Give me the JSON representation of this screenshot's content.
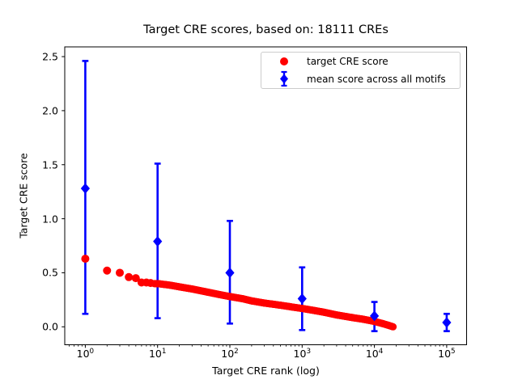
{
  "chart_data": {
    "type": "scatter",
    "title": "Target CRE scores, based on: 18111 CREs",
    "xlabel": "Target CRE rank (log)",
    "ylabel": "Target CRE score",
    "x_scale": "log",
    "xlim": [
      0.52,
      189000
    ],
    "ylim": [
      -0.17,
      2.59
    ],
    "x_tick_base": "10",
    "x_tick_exponents": [
      0,
      1,
      2,
      3,
      4,
      5
    ],
    "y_tick_labels": [
      "0.0",
      "0.5",
      "1.0",
      "1.5",
      "2.0",
      "2.5"
    ],
    "y_tick_values": [
      0.0,
      0.5,
      1.0,
      1.5,
      2.0,
      2.5
    ],
    "grid": false,
    "legend_position": "upper right",
    "n_cres": 18111,
    "series": [
      {
        "name": "target CRE score",
        "marker": "circle",
        "color": "#ff0000",
        "head_points": [
          [
            1,
            0.63
          ],
          [
            2,
            0.52
          ],
          [
            3,
            0.5
          ],
          [
            4,
            0.46
          ],
          [
            5,
            0.45
          ],
          [
            6,
            0.41
          ],
          [
            7,
            0.41
          ],
          [
            8,
            0.405
          ]
        ],
        "band_profile": [
          [
            9,
            0.4
          ],
          [
            10,
            0.4
          ],
          [
            15,
            0.385
          ],
          [
            20,
            0.37
          ],
          [
            30,
            0.35
          ],
          [
            50,
            0.32
          ],
          [
            70,
            0.3
          ],
          [
            100,
            0.28
          ],
          [
            150,
            0.26
          ],
          [
            200,
            0.24
          ],
          [
            300,
            0.22
          ],
          [
            500,
            0.2
          ],
          [
            700,
            0.185
          ],
          [
            1000,
            0.17
          ],
          [
            1500,
            0.15
          ],
          [
            2000,
            0.135
          ],
          [
            3000,
            0.11
          ],
          [
            5000,
            0.085
          ],
          [
            7000,
            0.07
          ],
          [
            10000,
            0.05
          ],
          [
            13000,
            0.03
          ],
          [
            16000,
            0.012
          ],
          [
            18111,
            0.0
          ]
        ]
      },
      {
        "name": "mean score across all motifs",
        "marker": "diamond",
        "color": "#0000ff",
        "points": [
          {
            "rank": 1,
            "mean": 1.28,
            "lo": 0.12,
            "hi": 2.46
          },
          {
            "rank": 10,
            "mean": 0.79,
            "lo": 0.08,
            "hi": 1.51
          },
          {
            "rank": 100,
            "mean": 0.5,
            "lo": 0.03,
            "hi": 0.98
          },
          {
            "rank": 1000,
            "mean": 0.26,
            "lo": -0.03,
            "hi": 0.55
          },
          {
            "rank": 10000,
            "mean": 0.1,
            "lo": -0.04,
            "hi": 0.23
          },
          {
            "rank": 100000,
            "mean": 0.04,
            "lo": -0.04,
            "hi": 0.12
          }
        ]
      }
    ]
  }
}
